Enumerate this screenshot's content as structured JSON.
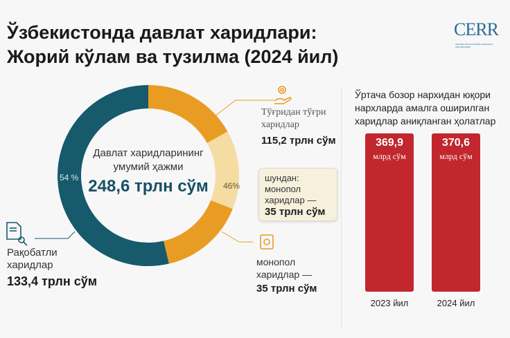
{
  "title_line1": "Ўзбекистонда давлат харидлари:",
  "title_line2": "Жорий кўлам ва тузилма (2024 йил)",
  "logo": {
    "text": "CERR",
    "subtitle": "CENTER FOR ECONOMIC RESEARCH AND REFORMS"
  },
  "colors": {
    "competitive": "#165a6c",
    "direct": "#e99c23",
    "monopoly": "#f4dca3",
    "bars": "#c1272d"
  },
  "chart_data": [
    {
      "type": "pie",
      "variant": "donut",
      "center_label": "Давлат харидларининг умумий ҳажми",
      "center_label_line1": "Давлат харидларининг",
      "center_label_line2": "умумий ҳажми",
      "total": "248,6 трлн сўм",
      "total_value": 248.6,
      "slices": [
        {
          "name": "Рақобатли харидлар",
          "value": 133.4,
          "percent": "54 %",
          "value_label": "133,4 трлн сўм",
          "line1": "Рақобатли",
          "line2": "харидлар"
        },
        {
          "name": "Тўғридан тўғри харидлар",
          "value": 115.2,
          "percent": "46%",
          "value_label": "115,2 трлн сўм",
          "line1": "Тўғридан тўғри",
          "line2": "харидлар"
        }
      ],
      "sub_slice": {
        "parent": "Тўғридан тўғри харидлар",
        "value": 35,
        "value_label": "35 трлн сўм",
        "line1": "монопол",
        "line2": "харидлар —"
      },
      "callout": {
        "line1": "шундан:",
        "line2": "монопол",
        "line3": "харидлар —",
        "value": "35 трлн сўм"
      }
    },
    {
      "type": "bar",
      "title": "Ўртача бозор нархидан юқори нархларда амалга оширилган харидлар аниқланган ҳолатлар",
      "title_lines": [
        "Ўртача бозор нархидан юқори",
        "нархларда амалга оширилган",
        "харидлар аниқланган ҳолатлар"
      ],
      "categories": [
        "2023 йил",
        "2024 йил"
      ],
      "values": [
        369.9,
        370.6
      ],
      "value_labels": [
        "369,9",
        "370,6"
      ],
      "unit": "млрд сўм"
    }
  ]
}
